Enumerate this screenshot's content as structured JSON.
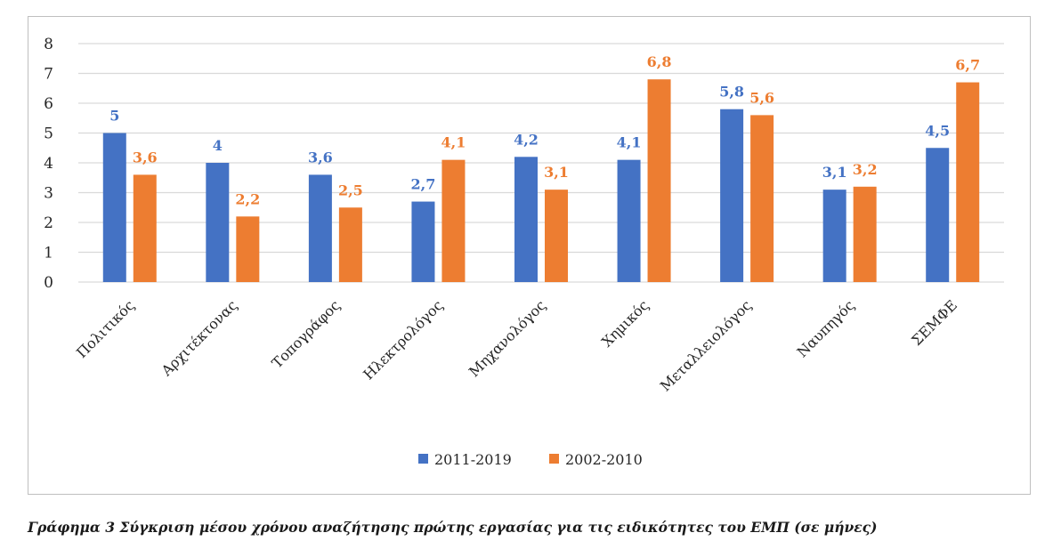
{
  "chart_data": {
    "type": "bar",
    "categories": [
      "Πολιτικός",
      "Αρχιτέκτονας",
      "Τοπογράφος",
      "Ηλεκτρολόγος",
      "Μηχανολόγος",
      "Χημικός",
      "Μεταλλειολόγος",
      "Ναυπηγός",
      "ΣΕΜΦΕ"
    ],
    "series": [
      {
        "name": "2011-2019",
        "color": "#4472c4",
        "values": [
          5,
          4,
          3.6,
          2.7,
          4.2,
          4.1,
          5.8,
          3.1,
          4.5
        ],
        "labels": [
          "5",
          "4",
          "3,6",
          "2,7",
          "4,2",
          "4,1",
          "5,8",
          "3,1",
          "4,5"
        ]
      },
      {
        "name": "2002-2010",
        "color": "#ed7d31",
        "values": [
          3.6,
          2.2,
          2.5,
          4.1,
          3.1,
          6.8,
          5.6,
          3.2,
          6.7
        ],
        "labels": [
          "3,6",
          "2,2",
          "2,5",
          "4,1",
          "3,1",
          "6,8",
          "5,6",
          "3,2",
          "6,7"
        ]
      }
    ],
    "ylim": [
      0,
      8
    ],
    "yticks": [
      "0",
      "1",
      "2",
      "3",
      "4",
      "5",
      "6",
      "7",
      "8"
    ],
    "grid": true,
    "legend": "bottom-center",
    "title": "",
    "xlabel": "",
    "ylabel": ""
  },
  "caption": "Γράφημα 3 Σύγκριση μέσου χρόνου αναζήτησης πρώτης εργασίας για τις ειδικότητες του ΕΜΠ (σε μήνες)"
}
